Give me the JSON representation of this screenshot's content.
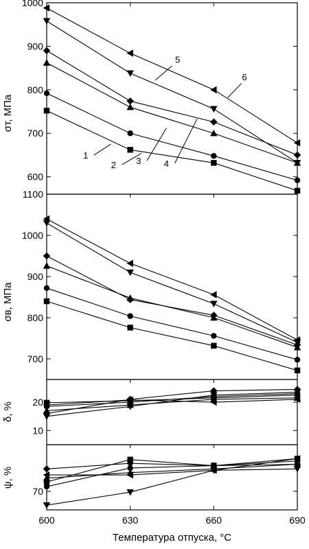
{
  "chart_data": [
    {
      "type": "line",
      "ylabel": "σт, МПа",
      "ylim": [
        560,
        1000
      ],
      "yticks": [
        600,
        700,
        800,
        900,
        1000
      ],
      "x": [
        600,
        630,
        660,
        690
      ],
      "series": [
        {
          "name": "1",
          "marker": "square",
          "values": [
            752,
            662,
            632,
            568
          ]
        },
        {
          "name": "2",
          "marker": "circle",
          "values": [
            792,
            700,
            648,
            592
          ]
        },
        {
          "name": "3",
          "marker": "triangle-up",
          "values": [
            862,
            760,
            700,
            632
          ]
        },
        {
          "name": "4",
          "marker": "diamond",
          "values": [
            890,
            774,
            726,
            650
          ]
        },
        {
          "name": "5",
          "marker": "triangle-down",
          "values": [
            958,
            838,
            756,
            632
          ]
        },
        {
          "name": "6",
          "marker": "triangle-left",
          "values": [
            988,
            884,
            800,
            678
          ]
        }
      ],
      "curve_labels": [
        "1",
        "2",
        "3",
        "4",
        "5",
        "6"
      ]
    },
    {
      "type": "line",
      "ylabel": "σв, МПа",
      "ylim": [
        650,
        1100
      ],
      "yticks": [
        700,
        800,
        900,
        1000,
        1100
      ],
      "x": [
        600,
        630,
        660,
        690
      ],
      "series": [
        {
          "name": "1",
          "marker": "square",
          "values": [
            840,
            776,
            732,
            672
          ]
        },
        {
          "name": "2",
          "marker": "circle",
          "values": [
            872,
            804,
            756,
            698
          ]
        },
        {
          "name": "3",
          "marker": "triangle-up",
          "values": [
            926,
            848,
            800,
            728
          ]
        },
        {
          "name": "4",
          "marker": "diamond",
          "values": [
            950,
            844,
            806,
            734
          ]
        },
        {
          "name": "5",
          "marker": "triangle-down",
          "values": [
            1030,
            910,
            834,
            740
          ]
        },
        {
          "name": "6",
          "marker": "triangle-left",
          "values": [
            1040,
            932,
            856,
            746
          ]
        }
      ]
    },
    {
      "type": "line",
      "ylabel": "δ, %",
      "ylim": [
        5,
        28
      ],
      "yticks": [
        10,
        20
      ],
      "x": [
        600,
        630,
        660,
        690
      ],
      "series": [
        {
          "name": "1",
          "marker": "square",
          "values": [
            19.8,
            20.5,
            21.5,
            22.5
          ]
        },
        {
          "name": "2",
          "marker": "circle",
          "values": [
            18.5,
            20.0,
            22.0,
            23.0
          ]
        },
        {
          "name": "3",
          "marker": "triangle-up",
          "values": [
            17.0,
            19.0,
            21.0,
            21.5
          ]
        },
        {
          "name": "4",
          "marker": "diamond",
          "values": [
            16.0,
            21.0,
            24.0,
            24.5
          ]
        },
        {
          "name": "5",
          "marker": "triangle-down",
          "values": [
            15.0,
            18.5,
            22.5,
            23.5
          ]
        },
        {
          "name": "6",
          "marker": "triangle-left",
          "values": [
            19.0,
            20.8,
            20.0,
            21.0
          ]
        }
      ]
    },
    {
      "type": "line",
      "ylabel": "ψ, %",
      "ylim": [
        66,
        80
      ],
      "yticks": [
        70
      ],
      "x": [
        600,
        630,
        660,
        690
      ],
      "series": [
        {
          "name": "1",
          "marker": "square",
          "values": [
            72.0,
            76.8,
            75.5,
            77.0
          ]
        },
        {
          "name": "2",
          "marker": "circle",
          "values": [
            71.0,
            75.0,
            75.5,
            76.5
          ]
        },
        {
          "name": "3",
          "marker": "triangle-up",
          "values": [
            72.8,
            74.0,
            74.8,
            75.8
          ]
        },
        {
          "name": "4",
          "marker": "diamond",
          "values": [
            74.8,
            76.0,
            75.5,
            75.8
          ]
        },
        {
          "name": "5",
          "marker": "triangle-down",
          "values": [
            67.0,
            69.8,
            74.5,
            74.8
          ]
        },
        {
          "name": "6",
          "marker": "triangle-left",
          "values": [
            73.5,
            73.5,
            74.5,
            77.0
          ]
        }
      ]
    }
  ],
  "x_axis": {
    "label": "Температура отпуска, °С",
    "ticks": [
      "600",
      "630",
      "660",
      "690"
    ],
    "xlim": [
      600,
      690
    ]
  },
  "colors": {
    "line": "#000000",
    "background": "#ffffff"
  }
}
